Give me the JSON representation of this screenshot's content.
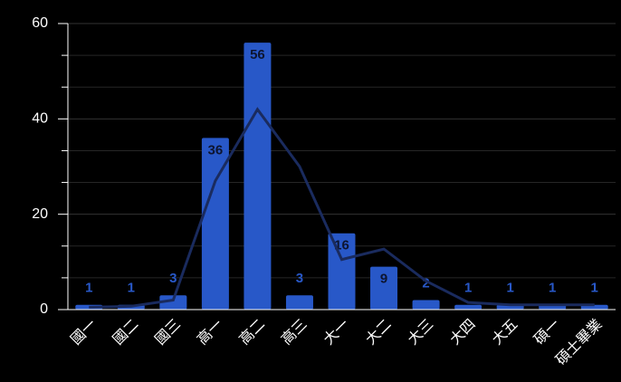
{
  "chart_data": {
    "type": "bar",
    "categories": [
      "國一",
      "國二",
      "國三",
      "高一",
      "高二",
      "高三",
      "大一",
      "大二",
      "大三",
      "大四",
      "大五",
      "碩一",
      "碩士畢業"
    ],
    "series": [
      {
        "type": "bar",
        "color": "#2858c8",
        "values": [
          1,
          1,
          3,
          36,
          56,
          3,
          16,
          9,
          2,
          1,
          1,
          1,
          1
        ]
      },
      {
        "type": "line",
        "color": "#1a2b5e",
        "values": [
          0.5,
          0.7,
          2,
          27,
          42,
          30,
          10.5,
          12.7,
          6,
          1.5,
          1,
          1,
          1
        ]
      }
    ],
    "ylim": [
      0,
      60
    ],
    "yticks": [
      0,
      20,
      40,
      60
    ],
    "yminorticks": [
      6.667,
      13.333,
      26.667,
      33.333,
      46.667,
      53.333
    ],
    "grid": true
  }
}
